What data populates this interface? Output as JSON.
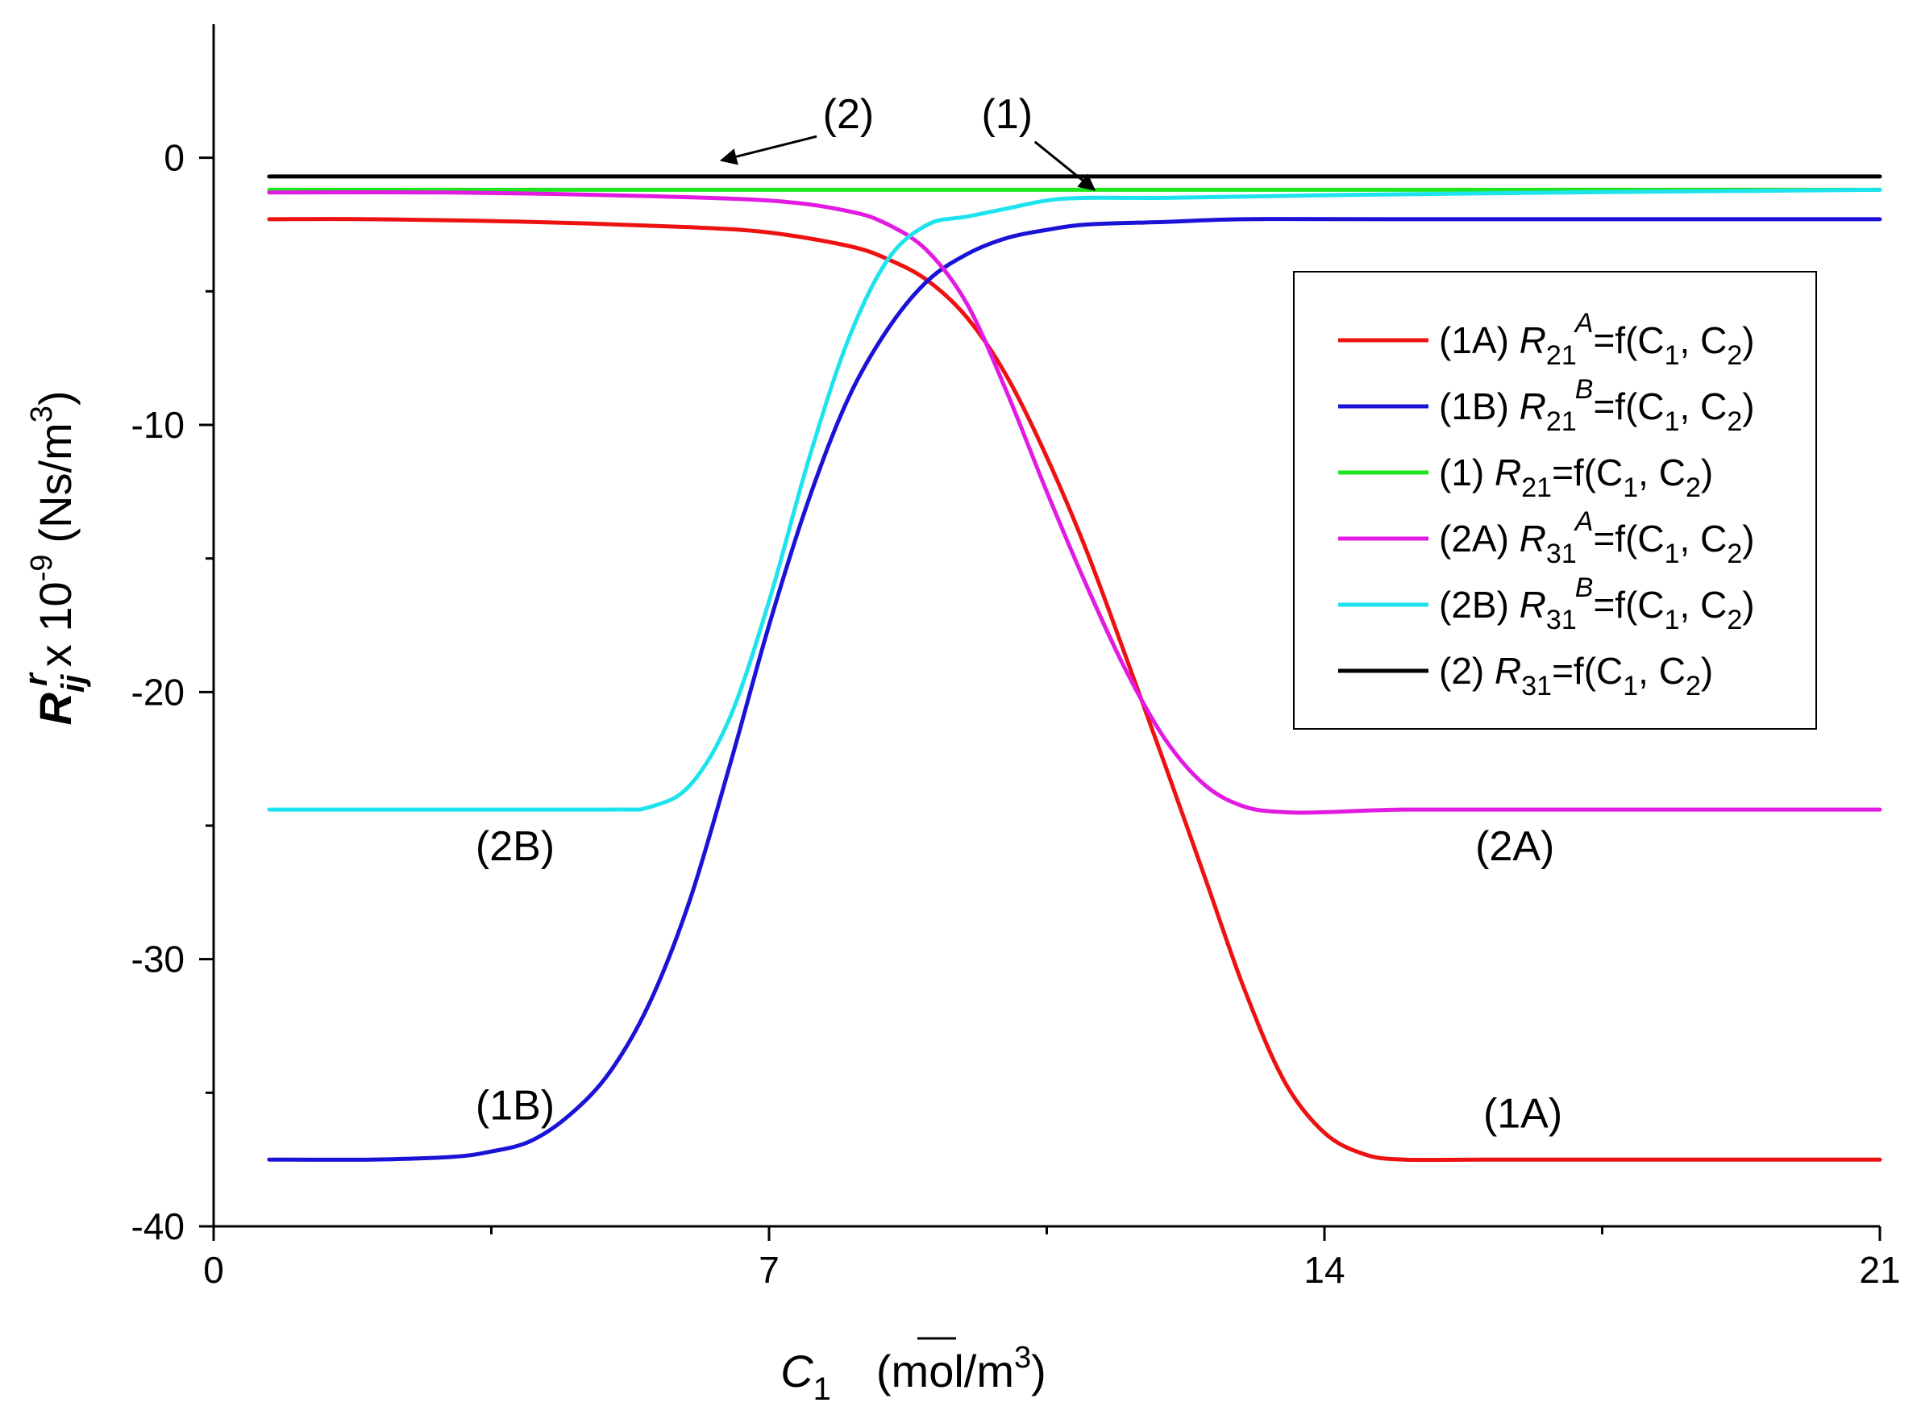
{
  "chart_data": {
    "type": "line",
    "xlabel": {
      "symbol": "C",
      "subscript": "1",
      "units_prefix": "(mol/m",
      "units_sup": "3",
      "units_suffix": ")"
    },
    "ylabel": {
      "symbol": "R",
      "subscript": "ij",
      "superscript": "r",
      "factor": "x 10",
      "factor_exp": "-9",
      "units_prefix": "(Ns/m",
      "units_sup": "3",
      "units_suffix": ")"
    },
    "xlim": [
      0,
      21
    ],
    "ylim": [
      -40,
      5
    ],
    "x_ticks": [
      0,
      7,
      14,
      21
    ],
    "x_tick_labels": [
      "0",
      "7",
      "14",
      "21"
    ],
    "x_minor_ticks": [
      3.5,
      10.5,
      17.5
    ],
    "y_ticks": [
      0,
      -10,
      -20,
      -30,
      -40
    ],
    "y_tick_labels": [
      "0",
      "-10",
      "-20",
      "-30",
      "-40"
    ],
    "y_minor_ticks": [
      -5,
      -15,
      -25,
      -35
    ],
    "grid": false,
    "legend_position": "right",
    "series": [
      {
        "id": "1A",
        "color": "#ee1111",
        "legend": {
          "tag": "(1A)",
          "R": "R",
          "sub": "21",
          "sup": "A",
          "rest": "=f(C",
          "c1": "1",
          "sep": ", C",
          "c2": "2",
          "end": ")"
        },
        "x": [
          0.7,
          2,
          4,
          6,
          7,
          8,
          8.5,
          9,
          9.5,
          10,
          10.5,
          11,
          11.5,
          12,
          12.5,
          13,
          13.5,
          14,
          14.5,
          15,
          16,
          18,
          21
        ],
        "y": [
          -2.3,
          -2.3,
          -2.4,
          -2.6,
          -2.8,
          -3.3,
          -3.8,
          -4.6,
          -6.0,
          -8.2,
          -11.2,
          -14.7,
          -18.7,
          -22.8,
          -27.0,
          -31.2,
          -34.6,
          -36.5,
          -37.3,
          -37.5,
          -37.5,
          -37.5,
          -37.5
        ]
      },
      {
        "id": "1B",
        "color": "#1a12d6",
        "legend": {
          "tag": "(1B)",
          "R": "R",
          "sub": "21",
          "sup": "B",
          "rest": "=f(C",
          "c1": "1",
          "sep": ", C",
          "c2": "2",
          "end": ")"
        },
        "x": [
          0.7,
          2,
          3,
          3.5,
          4,
          4.5,
          5,
          5.5,
          6,
          6.5,
          7,
          7.5,
          8,
          8.5,
          9,
          9.5,
          10,
          10.5,
          11,
          12,
          13,
          15,
          21
        ],
        "y": [
          -37.5,
          -37.5,
          -37.4,
          -37.2,
          -36.8,
          -35.8,
          -34.2,
          -31.6,
          -27.8,
          -22.8,
          -17.5,
          -12.8,
          -9.0,
          -6.4,
          -4.6,
          -3.6,
          -3.0,
          -2.7,
          -2.5,
          -2.4,
          -2.3,
          -2.3,
          -2.3
        ]
      },
      {
        "id": "1",
        "color": "#1ee61e",
        "legend": {
          "tag": "(1) ",
          "R": "R",
          "sub": "21",
          "sup": "",
          "rest": "=f(C",
          "c1": "1",
          "sep": ", C",
          "c2": "2",
          "end": ")"
        },
        "x": [
          0.7,
          21
        ],
        "y": [
          -1.2,
          -1.2
        ]
      },
      {
        "id": "2A",
        "color": "#e21be2",
        "legend": {
          "tag": "(2A)",
          "R": "R",
          "sub": "31",
          "sup": "A",
          "rest": "=f(C",
          "c1": "1",
          "sep": ", C",
          "c2": "2",
          "end": ")"
        },
        "x": [
          0.7,
          3,
          5,
          7,
          8,
          8.5,
          9,
          9.5,
          10,
          10.5,
          11,
          11.5,
          12,
          12.5,
          13,
          13.5,
          14,
          15,
          17,
          21
        ],
        "y": [
          -1.3,
          -1.3,
          -1.4,
          -1.6,
          -2.0,
          -2.5,
          -3.5,
          -5.5,
          -8.8,
          -12.5,
          -16.0,
          -19.2,
          -21.8,
          -23.5,
          -24.3,
          -24.5,
          -24.5,
          -24.4,
          -24.4,
          -24.4
        ]
      },
      {
        "id": "2B",
        "color": "#1ee3ee",
        "legend": {
          "tag": "(2B)",
          "R": "R",
          "sub": "31",
          "sup": "B",
          "rest": "=f(C",
          "c1": "1",
          "sep": ", C",
          "c2": "2",
          "end": ")"
        },
        "x": [
          0.7,
          3,
          5,
          5.5,
          6,
          6.5,
          7,
          7.5,
          8,
          8.5,
          9,
          9.5,
          10,
          10.5,
          11,
          12,
          14,
          17,
          21
        ],
        "y": [
          -24.4,
          -24.4,
          -24.4,
          -24.3,
          -23.5,
          -21.0,
          -16.6,
          -11.3,
          -6.8,
          -3.8,
          -2.5,
          -2.2,
          -1.9,
          -1.6,
          -1.5,
          -1.5,
          -1.4,
          -1.3,
          -1.2
        ]
      },
      {
        "id": "2",
        "color": "#000000",
        "legend": {
          "tag": "(2) ",
          "R": "R",
          "sub": "31",
          "sup": "",
          "rest": "=f(C",
          "c1": "1",
          "sep": ", C",
          "c2": "2",
          "end": ")"
        },
        "x": [
          0.7,
          21
        ],
        "y": [
          -0.7,
          -0.7
        ]
      }
    ],
    "annotations": [
      {
        "text": "(2)",
        "x": 8.0,
        "y": 1.1,
        "arrow_to": [
          6.4,
          -0.1
        ],
        "arrow_from": [
          7.6,
          0.8
        ]
      },
      {
        "text": "(1)",
        "x": 10.0,
        "y": 1.1,
        "arrow_to": [
          11.1,
          -1.2
        ],
        "arrow_from": [
          10.35,
          0.6
        ]
      },
      {
        "text": "(2B)",
        "x": 3.8,
        "y": -26.3
      },
      {
        "text": "(2A)",
        "x": 16.4,
        "y": -26.3
      },
      {
        "text": "(1B)",
        "x": 3.8,
        "y": -36.0
      },
      {
        "text": "(1A)",
        "x": 16.5,
        "y": -36.3
      }
    ]
  }
}
